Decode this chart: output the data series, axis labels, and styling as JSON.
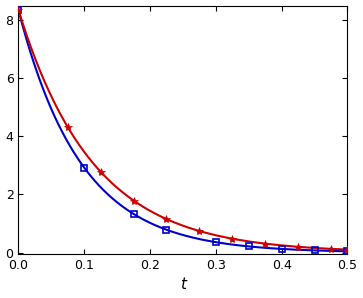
{
  "title": "",
  "xlabel": "t",
  "ylabel": "",
  "xlim": [
    0,
    0.5
  ],
  "ylim": [
    -0.05,
    8.5
  ],
  "yticks": [
    0,
    2,
    4,
    6,
    8
  ],
  "xticks": [
    0.0,
    0.1,
    0.2,
    0.3,
    0.4,
    0.5
  ],
  "blue_decay_rate": 10.5,
  "blue_initial": 8.35,
  "red_decay_rate": 8.8,
  "red_initial": 8.35,
  "blue_marker_times": [
    0.0,
    0.1,
    0.175,
    0.225,
    0.3,
    0.35,
    0.4,
    0.45,
    0.5
  ],
  "red_marker_times": [
    0.0,
    0.075,
    0.125,
    0.175,
    0.225,
    0.275,
    0.325,
    0.375,
    0.425,
    0.475,
    0.5
  ],
  "blue_color": "#0000cc",
  "red_color": "#cc0000",
  "background_color": "#ffffff",
  "figwidth": 3.63,
  "figheight": 2.98,
  "linewidth": 1.5,
  "marker_size_square": 5,
  "marker_size_star": 6
}
